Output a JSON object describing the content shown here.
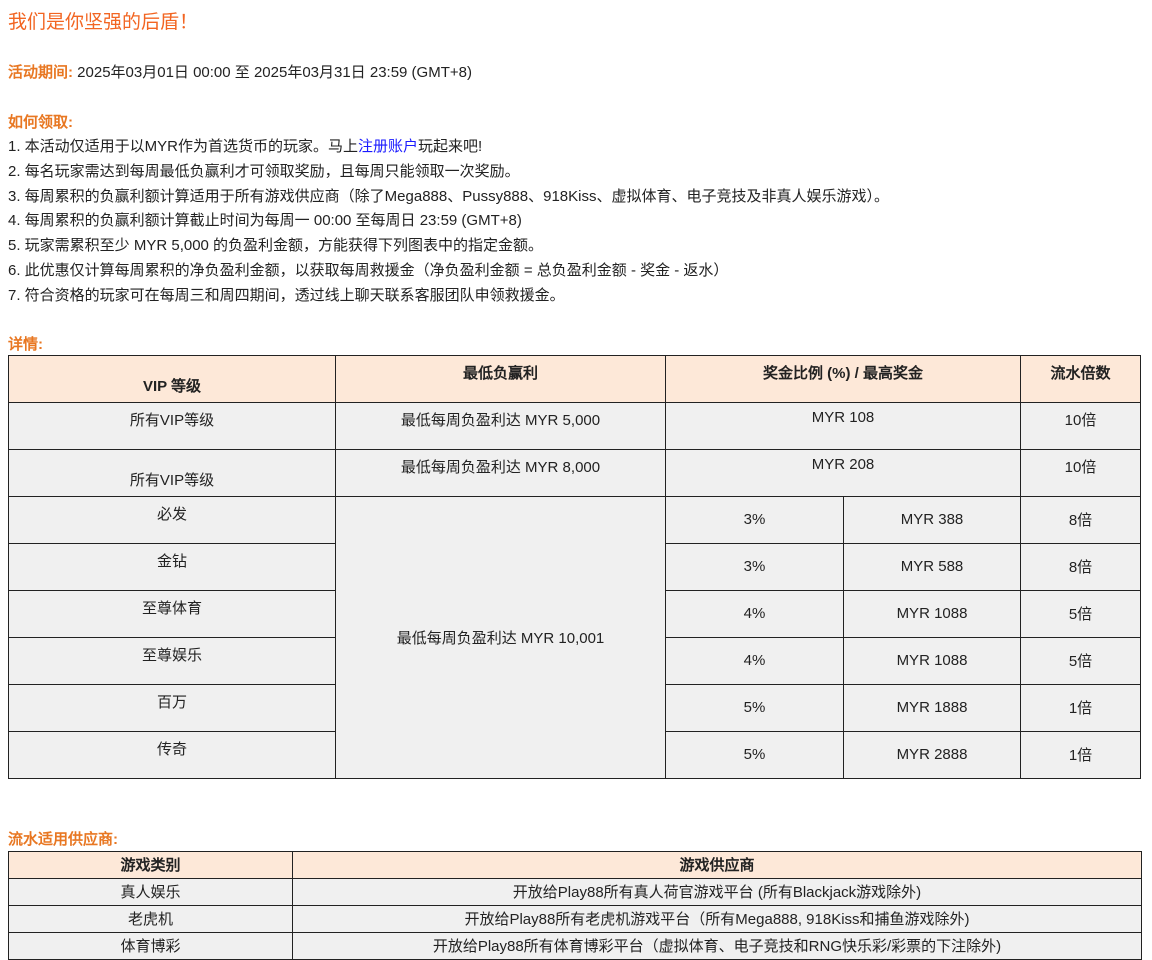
{
  "title": "我们是你坚强的后盾！",
  "period": {
    "label": "活动期间:",
    "value": " 2025年03月01日 00:00 至 2025年03月31日 23:59 (GMT+8)"
  },
  "how": {
    "label": "如何领取:",
    "items": [
      "1. 本活动仅适用于以MYR作为首选货币的玩家。马上",
      "2. 每名玩家需达到每周最低负赢利才可领取奖励，且每周只能领取一次奖励。",
      "3. 每周累积的负赢利额计算适用于所有游戏供应商（除了Mega888、Pussy888、918Kiss、虚拟体育、电子竞技及非真人娱乐游戏）。",
      "4. 每周累积的负赢利额计算截止时间为每周一 00:00 至每周日 23:59 (GMT+8)",
      "5. 玩家需累积至少 MYR 5,000 的负盈利金额，方能获得下列图表中的指定金额。",
      "6. 此优惠仅计算每周累积的净负盈利金额，以获取每周救援金（净负盈利金额 = 总负盈利金额 - 奖金 - 返水）",
      "7. 符合资格的玩家可在每周三和周四期间，透过线上聊天联系客服团队申领救援金。"
    ],
    "link": "注册账户",
    "link_after": "玩起来吧!"
  },
  "details": {
    "label": "详情:",
    "headers": [
      "VIP 等级",
      "最低负赢利",
      "奖金比例 (%) / 最高奖金",
      "流水倍数"
    ],
    "rows_fixed": [
      {
        "vip": "所有VIP等级",
        "min": "最低每周负盈利达 MYR 5,000",
        "bonus": "MYR 108",
        "turnover": "10倍"
      },
      {
        "vip": "所有VIP等级",
        "min": "最低每周负盈利达 MYR 8,000",
        "bonus": "MYR 208",
        "turnover": "10倍"
      }
    ],
    "shared_min": "最低每周负盈利达 MYR 10,001",
    "rows_tier": [
      {
        "vip": "必发",
        "pct": "3%",
        "max": "MYR 388",
        "turnover": "8倍"
      },
      {
        "vip": "金钻",
        "pct": "3%",
        "max": "MYR 588",
        "turnover": "8倍"
      },
      {
        "vip": "至尊体育",
        "pct": "4%",
        "max": "MYR 1088",
        "turnover": "5倍"
      },
      {
        "vip": "至尊娱乐",
        "pct": "4%",
        "max": "MYR 1088",
        "turnover": "5倍"
      },
      {
        "vip": "百万",
        "pct": "5%",
        "max": "MYR 1888",
        "turnover": "1倍"
      },
      {
        "vip": "传奇",
        "pct": "5%",
        "max": "MYR 2888",
        "turnover": "1倍"
      }
    ]
  },
  "providers": {
    "label": "流水适用供应商:",
    "headers": [
      "游戏类别",
      "游戏供应商"
    ],
    "rows": [
      {
        "cat": "真人娱乐",
        "desc": "开放给Play88所有真人荷官游戏平台 (所有Blackjack游戏除外)"
      },
      {
        "cat": "老虎机",
        "desc": "开放给Play88所有老虎机游戏平台（所有Mega888, 918Kiss和捕鱼游戏除外)"
      },
      {
        "cat": "体育博彩",
        "desc": "开放给Play88所有体育博彩平台（虚拟体育、电子竞技和RNG快乐彩/彩票的下注除外)"
      }
    ]
  }
}
